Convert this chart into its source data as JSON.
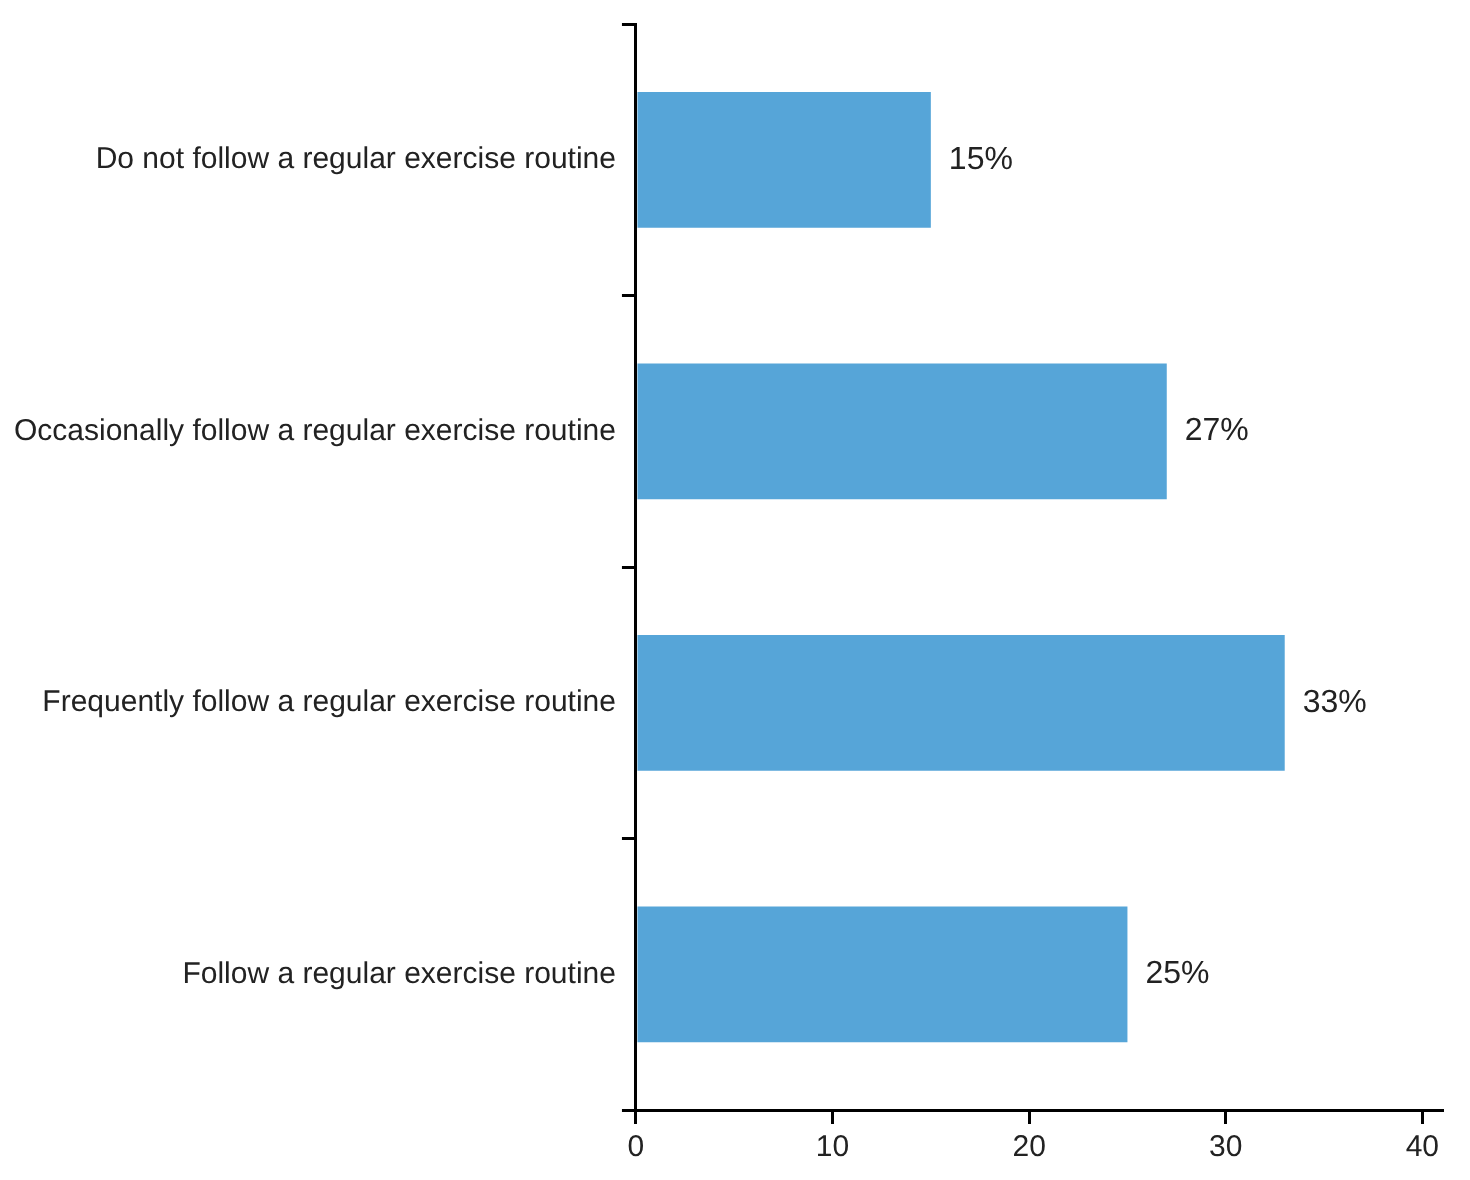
{
  "chart_data": {
    "type": "bar",
    "orientation": "horizontal",
    "categories": [
      "Do not follow a regular exercise routine",
      "Occasionally follow a regular exercise routine",
      "Frequently follow a regular exercise routine",
      "Follow a regular exercise routine"
    ],
    "values": [
      15,
      27,
      33,
      25
    ],
    "value_labels": [
      "15%",
      "27%",
      "33%",
      "25%"
    ],
    "color": "#56a5d8",
    "xlim": [
      0,
      41
    ],
    "xticks": [
      0,
      10,
      20,
      30,
      40
    ],
    "grid": false,
    "legend": false
  }
}
